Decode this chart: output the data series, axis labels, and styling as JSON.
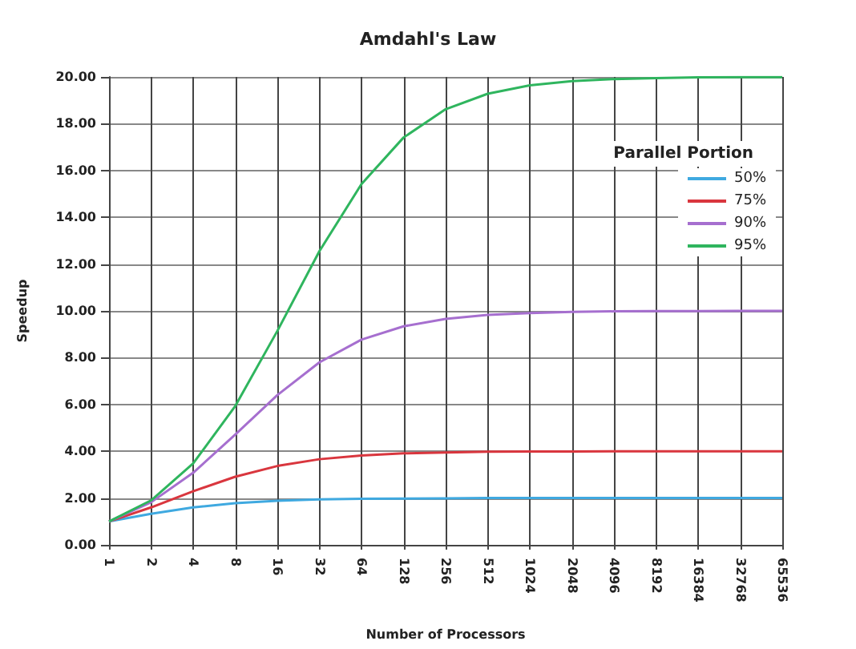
{
  "chart_data": {
    "type": "line",
    "title": "Amdahl's Law",
    "xlabel": "Number of Processors",
    "ylabel": "Speedup",
    "legend_title": "Parallel Portion",
    "categories": [
      "1",
      "2",
      "4",
      "8",
      "16",
      "32",
      "64",
      "128",
      "256",
      "512",
      "1024",
      "2048",
      "4096",
      "8192",
      "16384",
      "32768",
      "65536"
    ],
    "series": [
      {
        "name": "50%",
        "color": "#3fa9e0",
        "values": [
          1,
          1.33,
          1.6,
          1.78,
          1.88,
          1.94,
          1.97,
          1.98,
          1.99,
          2,
          2,
          2,
          2,
          2,
          2,
          2,
          2
        ]
      },
      {
        "name": "75%",
        "color": "#d9363e",
        "values": [
          1,
          1.6,
          2.29,
          2.91,
          3.37,
          3.66,
          3.82,
          3.91,
          3.95,
          3.98,
          3.99,
          3.99,
          4,
          4,
          4,
          4,
          4
        ]
      },
      {
        "name": "90%",
        "color": "#a66fcf",
        "values": [
          1,
          1.82,
          3.08,
          4.71,
          6.4,
          7.8,
          8.77,
          9.34,
          9.66,
          9.83,
          9.91,
          9.96,
          9.98,
          9.99,
          9.99,
          10,
          10
        ]
      },
      {
        "name": "95%",
        "color": "#2fb55e",
        "values": [
          1,
          1.9,
          3.48,
          5.93,
          9.14,
          12.55,
          15.42,
          17.41,
          18.62,
          19.28,
          19.64,
          19.82,
          19.91,
          19.95,
          19.98,
          19.99,
          19.99
        ]
      }
    ],
    "ylim": [
      0,
      20
    ],
    "yticks": [
      {
        "value": 0,
        "label": "0.00"
      },
      {
        "value": 2,
        "label": "2.00"
      },
      {
        "value": 4,
        "label": "4.00"
      },
      {
        "value": 6,
        "label": "6.00"
      },
      {
        "value": 8,
        "label": "8.00"
      },
      {
        "value": 10,
        "label": "10.00"
      },
      {
        "value": 12,
        "label": "12.00"
      },
      {
        "value": 14,
        "label": "14.00"
      },
      {
        "value": 16,
        "label": "16.00"
      },
      {
        "value": 18,
        "label": "18.00"
      },
      {
        "value": 20,
        "label": "20.00"
      }
    ],
    "grid": true,
    "legend": "top right",
    "marker": "none",
    "line_style": "solid"
  }
}
